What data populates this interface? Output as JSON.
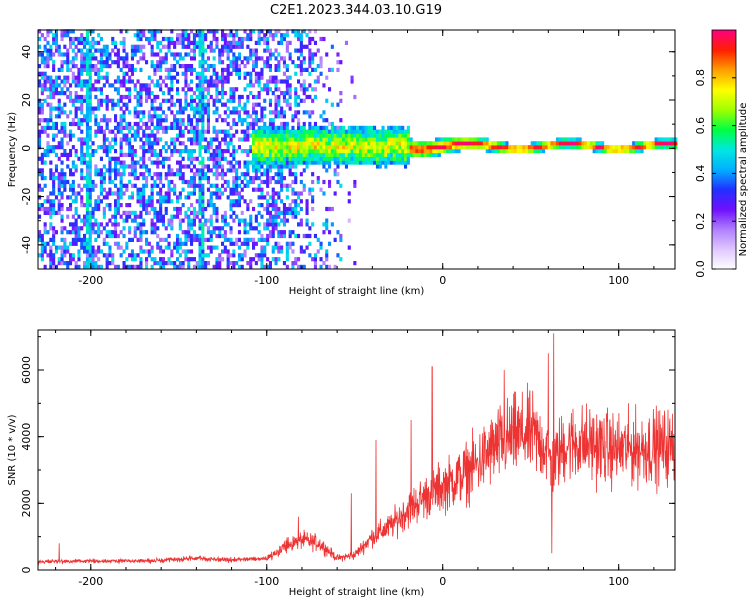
{
  "figure": {
    "title": "C2E1.2023.344.03.10.G19"
  },
  "chart_data": [
    {
      "type": "heatmap",
      "xlabel": "Height of straight line (km)",
      "ylabel": "Frequency (Hz)",
      "xlim": [
        -230,
        132
      ],
      "ylim": [
        -50,
        49
      ],
      "xticks": [
        -200,
        -100,
        0,
        100
      ],
      "yticks": [
        -40,
        -20,
        0,
        20,
        40
      ],
      "colorbar": {
        "label": "Normalized spectral amplitude",
        "range": [
          0.0,
          1.0
        ],
        "ticks": [
          0.0,
          0.2,
          0.4,
          0.6,
          0.8
        ],
        "tick_labels": [
          "0.0",
          "0.2",
          "0.4",
          "0.6",
          "0.8"
        ],
        "colormap": [
          "#ffffff",
          "#e0c8ff",
          "#b080ff",
          "#7010ff",
          "#2030ff",
          "#00b0ff",
          "#00e8e0",
          "#00ff40",
          "#a0ff00",
          "#ffff00",
          "#ffa000",
          "#ff2000",
          "#ff0080"
        ]
      },
      "features": {
        "noise_region_x": [
          -230,
          -95
        ],
        "vertical_streaks_x": [
          -202,
          -138
        ],
        "signal_center_hz": 0,
        "signal_halfwidth_hz": [
          8,
          2
        ]
      }
    },
    {
      "type": "line",
      "xlabel": "Height of straight line (km)",
      "ylabel": "SNR (10 * v/v)",
      "xlim": [
        -230,
        132
      ],
      "ylim": [
        0,
        7200
      ],
      "xticks": [
        -200,
        -100,
        0,
        100
      ],
      "yticks": [
        0,
        2000,
        4000,
        6000
      ],
      "color": "#ee3333",
      "envelope": {
        "x": [
          -230,
          -160,
          -140,
          -120,
          -100,
          -90,
          -80,
          -70,
          -60,
          -50,
          -40,
          -30,
          -20,
          -10,
          0,
          10,
          20,
          30,
          40,
          50,
          60,
          62,
          65,
          70,
          80,
          90,
          100,
          110,
          120,
          132
        ],
        "y": [
          250,
          280,
          350,
          300,
          350,
          700,
          900,
          800,
          350,
          450,
          1000,
          1300,
          1800,
          2200,
          2500,
          2800,
          3200,
          3700,
          4000,
          4100,
          3600,
          3000,
          3400,
          3800,
          3800,
          3700,
          3600,
          3650,
          3700,
          3700
        ]
      },
      "spikes": [
        {
          "x": -218,
          "y": 800
        },
        {
          "x": -82,
          "y": 1600
        },
        {
          "x": -52,
          "y": 2300
        },
        {
          "x": -38,
          "y": 3900
        },
        {
          "x": -18,
          "y": 4500
        },
        {
          "x": -6,
          "y": 6100
        },
        {
          "x": 35,
          "y": 6000
        },
        {
          "x": 60,
          "y": 6500
        },
        {
          "x": 63,
          "y": 7100
        },
        {
          "x": 62,
          "y": 500
        },
        {
          "x": 95,
          "y": 4500
        }
      ]
    }
  ]
}
